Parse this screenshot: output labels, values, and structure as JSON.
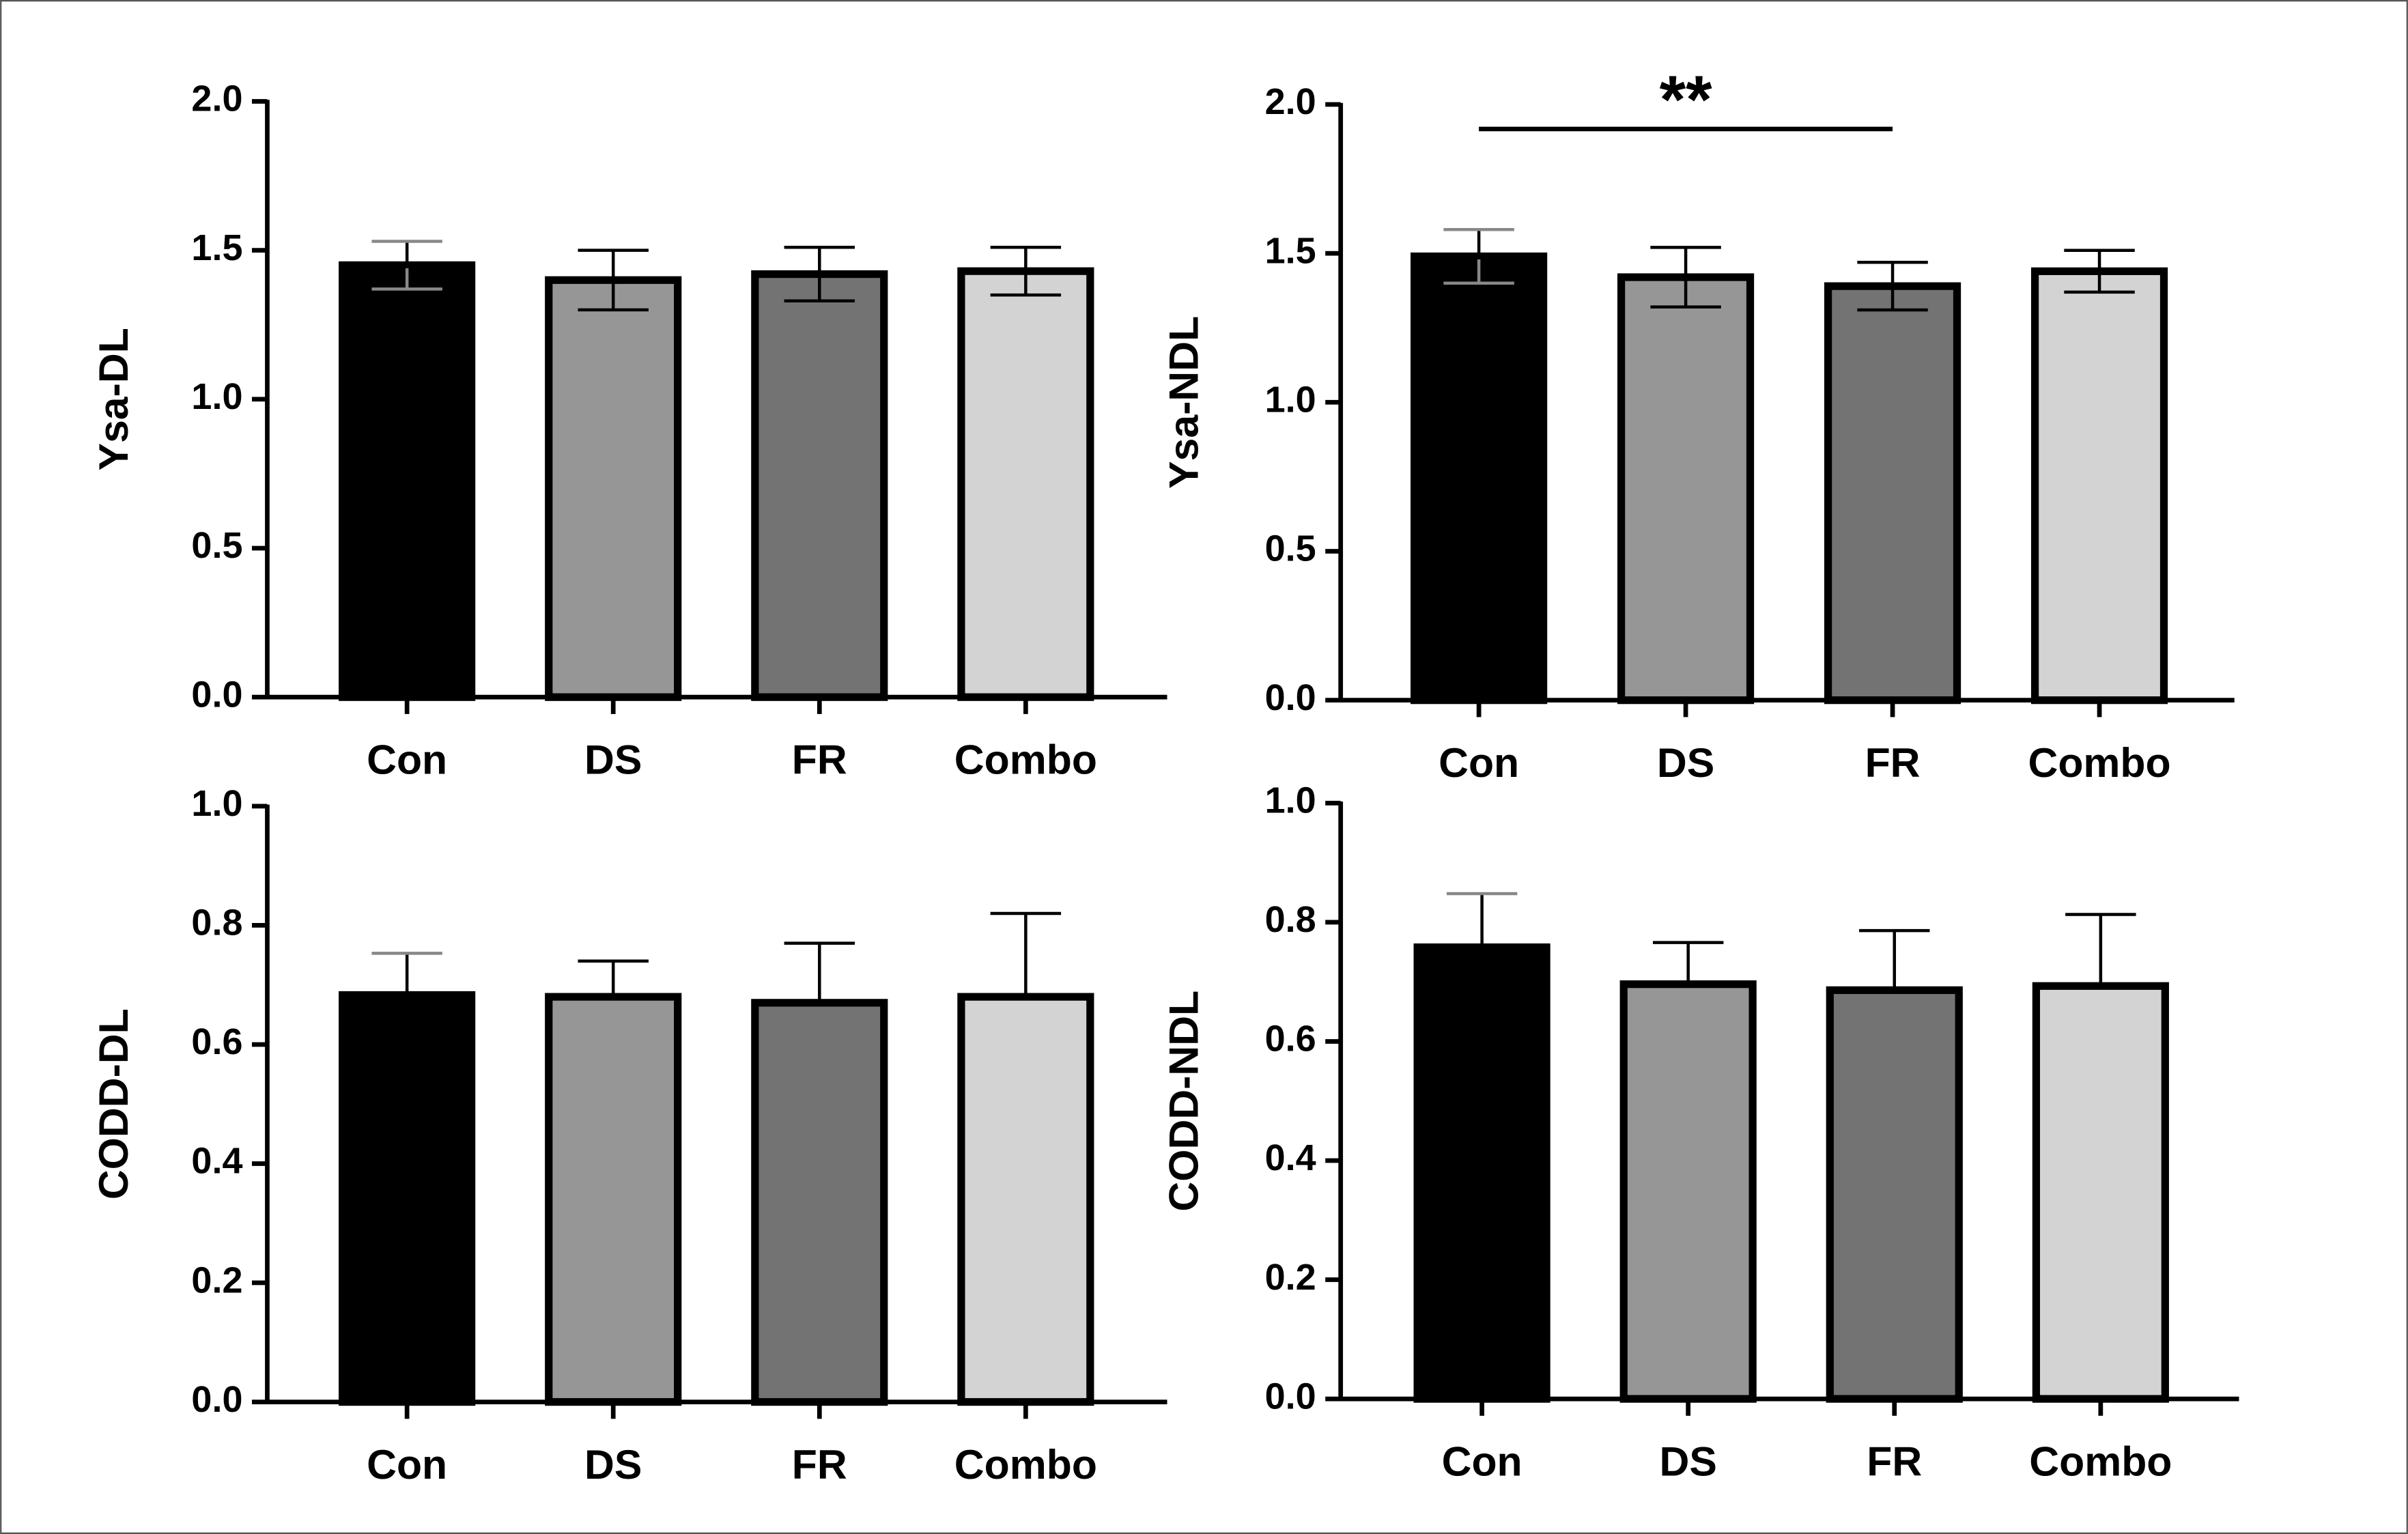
{
  "chart_data": [
    {
      "type": "bar",
      "ylabel": "Ysa-DL",
      "categories": [
        "Con",
        "DS",
        "FR",
        "Combo"
      ],
      "values": [
        1.45,
        1.4,
        1.42,
        1.43
      ],
      "errors": [
        0.08,
        0.1,
        0.09,
        0.08
      ],
      "error_bars": "both",
      "colors": [
        "#000000",
        "#969696",
        "#737373",
        "#d3d3d3"
      ],
      "ylim": [
        0,
        2
      ],
      "yticks": [
        {
          "value": 0,
          "label": "0.0"
        },
        {
          "value": 0.5,
          "label": "0.5"
        },
        {
          "value": 1,
          "label": "1.0"
        },
        {
          "value": 1.5,
          "label": "1.5"
        },
        {
          "value": 2,
          "label": "2.0"
        }
      ]
    },
    {
      "type": "bar",
      "ylabel": "Ysa-NDL",
      "categories": [
        "Con",
        "DS",
        "FR",
        "Combo"
      ],
      "values": [
        1.49,
        1.42,
        1.39,
        1.44
      ],
      "errors": [
        0.09,
        0.1,
        0.08,
        0.07
      ],
      "error_bars": "both",
      "colors": [
        "#000000",
        "#969696",
        "#737373",
        "#d3d3d3"
      ],
      "ylim": [
        0,
        2
      ],
      "yticks": [
        {
          "value": 0,
          "label": "0.0"
        },
        {
          "value": 0.5,
          "label": "0.5"
        },
        {
          "value": 1,
          "label": "1.0"
        },
        {
          "value": 1.5,
          "label": "1.5"
        },
        {
          "value": 2,
          "label": "2.0"
        }
      ],
      "annotations": [
        {
          "text": "**",
          "between": [
            "Con",
            "FR"
          ]
        }
      ]
    },
    {
      "type": "bar",
      "ylabel": "CODD-DL",
      "categories": [
        "Con",
        "DS",
        "FR",
        "Combo"
      ],
      "values": [
        0.683,
        0.68,
        0.67,
        0.68
      ],
      "errors": [
        0.07,
        0.06,
        0.1,
        0.14
      ],
      "error_bars": "up",
      "colors": [
        "#000000",
        "#969696",
        "#737373",
        "#d3d3d3"
      ],
      "ylim": [
        0,
        1
      ],
      "yticks": [
        {
          "value": 0,
          "label": "0.0"
        },
        {
          "value": 0.2,
          "label": "0.2"
        },
        {
          "value": 0.4,
          "label": "0.4"
        },
        {
          "value": 0.6,
          "label": "0.6"
        },
        {
          "value": 0.8,
          "label": "0.8"
        },
        {
          "value": 1,
          "label": "1.0"
        }
      ]
    },
    {
      "type": "bar",
      "ylabel": "CODD-NDL",
      "categories": [
        "Con",
        "DS",
        "FR",
        "Combo"
      ],
      "values": [
        0.758,
        0.696,
        0.686,
        0.693
      ],
      "errors": [
        0.09,
        0.07,
        0.1,
        0.12
      ],
      "error_bars": "up",
      "colors": [
        "#000000",
        "#969696",
        "#737373",
        "#d3d3d3"
      ],
      "ylim": [
        0,
        1
      ],
      "yticks": [
        {
          "value": 0,
          "label": "0.0"
        },
        {
          "value": 0.2,
          "label": "0.2"
        },
        {
          "value": 0.4,
          "label": "0.4"
        },
        {
          "value": 0.6,
          "label": "0.6"
        },
        {
          "value": 0.8,
          "label": "0.8"
        },
        {
          "value": 1,
          "label": "1.0"
        }
      ]
    }
  ]
}
